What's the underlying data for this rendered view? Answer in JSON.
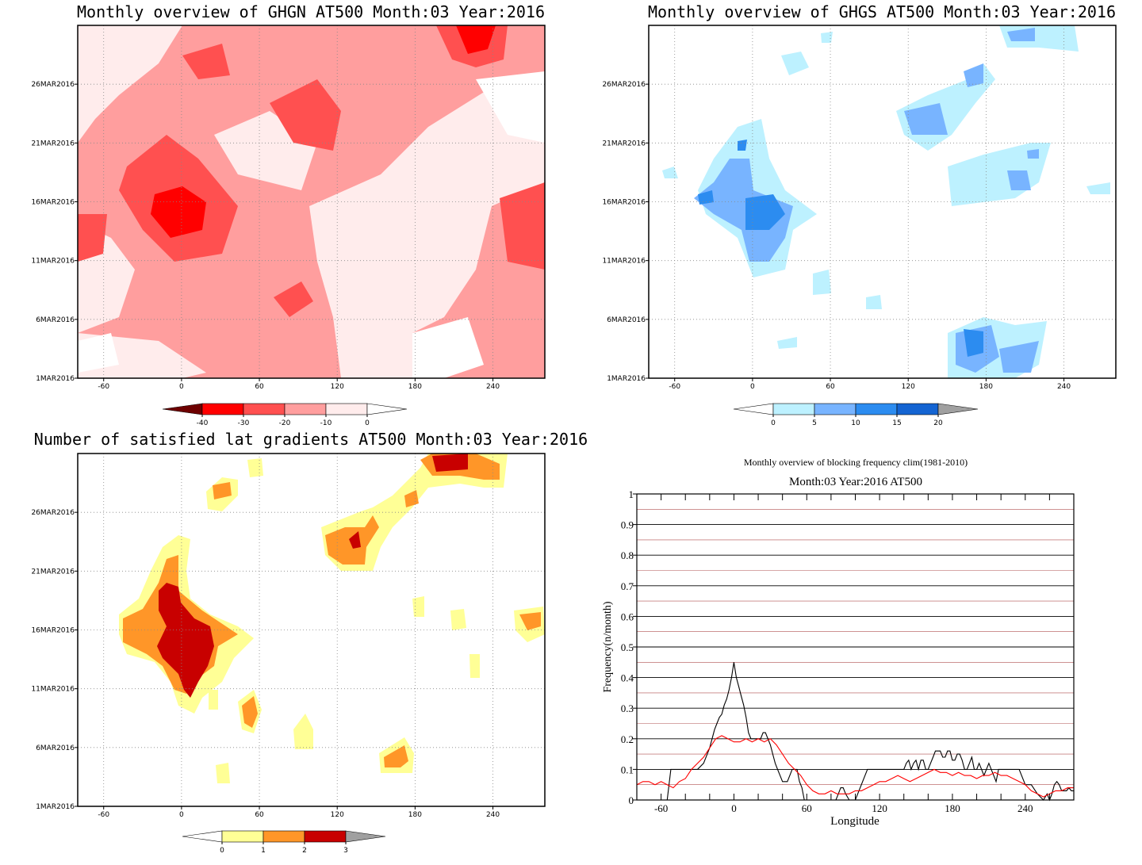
{
  "chart_data": [
    {
      "type": "heatmap",
      "title": "Monthly overview of GHGN AT500 Month:03 Year:2016",
      "x_ticks": [
        "-60",
        "0",
        "60",
        "120",
        "180",
        "240"
      ],
      "y_ticks": [
        "1MAR2016",
        "6MAR2016",
        "11MAR2016",
        "16MAR2016",
        "21MAR2016",
        "26MAR2016"
      ],
      "xlim": [
        -80,
        280
      ],
      "ylim": [
        "1MAR2016",
        "31MAR2016"
      ],
      "grid": true,
      "colorbar": {
        "labels": [
          "-40",
          "-30",
          "-20",
          "-10",
          "0"
        ],
        "colors": [
          "#6e0000",
          "#ff0000",
          "#ff5050",
          "#ff9e9e",
          "#ffecec",
          "#ffffff"
        ]
      },
      "features": [
        {
          "lon": -5,
          "day": 15.5,
          "level": -20
        },
        {
          "lon": 85,
          "day": 24.2,
          "level": -20
        },
        {
          "lon": 225,
          "day": 30.6,
          "level": -30
        },
        {
          "lon": 262,
          "day": 14.5,
          "level": -20
        },
        {
          "lon": 85,
          "day": 8.5,
          "level": -20
        }
      ]
    },
    {
      "type": "heatmap",
      "title": "Monthly overview of GHGS AT500 Month:03 Year:2016",
      "x_ticks": [
        "-60",
        "0",
        "60",
        "120",
        "180",
        "240"
      ],
      "y_ticks": [
        "1MAR2016",
        "6MAR2016",
        "11MAR2016",
        "16MAR2016",
        "21MAR2016",
        "26MAR2016"
      ],
      "xlim": [
        -80,
        280
      ],
      "ylim": [
        "1MAR2016",
        "31MAR2016"
      ],
      "grid": true,
      "colorbar": {
        "labels": [
          "0",
          "5",
          "10",
          "15",
          "20"
        ],
        "colors": [
          "#ffffff",
          "#bdf1ff",
          "#78b4ff",
          "#2c8cf0",
          "#1464d2",
          "#a0a0a0"
        ]
      },
      "features": [
        {
          "lon": 5,
          "day": 14.5,
          "level": 15
        },
        {
          "lon": 170,
          "day": 3.5,
          "level": 15
        },
        {
          "lon": 140,
          "day": 22,
          "level": 10
        },
        {
          "lon": 200,
          "day": 26.5,
          "level": 10
        }
      ]
    },
    {
      "type": "heatmap",
      "title": "Number of satisfied lat gradients AT500 Month:03 Year:2016",
      "x_ticks": [
        "-60",
        "0",
        "60",
        "120",
        "180",
        "240"
      ],
      "y_ticks": [
        "1MAR2016",
        "6MAR2016",
        "11MAR2016",
        "16MAR2016",
        "21MAR2016",
        "26MAR2016"
      ],
      "xlim": [
        -80,
        280
      ],
      "ylim": [
        "1MAR2016",
        "31MAR2016"
      ],
      "grid": true,
      "colorbar": {
        "labels": [
          "0",
          "1",
          "2",
          "3"
        ],
        "colors": [
          "#ffffff",
          "#ffff96",
          "#ff9628",
          "#c80000",
          "#a0a0a0"
        ]
      },
      "features": [
        {
          "lon": 5,
          "day": 14,
          "level": 3
        },
        {
          "lon": 133,
          "day": 22.7,
          "level": 3
        },
        {
          "lon": 205,
          "day": 30.5,
          "level": 3
        },
        {
          "lon": 50,
          "day": 9.2,
          "level": 2
        },
        {
          "lon": 165,
          "day": 4.7,
          "level": 2
        }
      ]
    },
    {
      "type": "line",
      "title": "Monthly overview of blocking frequency clim(1981-2010)",
      "subtitle": "Month:03 Year:2016  AT500",
      "xlabel": "Longitude",
      "ylabel": "Frequency(n/month)",
      "x_ticks": [
        "-60",
        "0",
        "60",
        "120",
        "180",
        "240"
      ],
      "y_ticks": [
        "0",
        "0.1",
        "0.2",
        "0.3",
        "0.4",
        "0.5",
        "0.6",
        "0.7",
        "0.8",
        "0.9",
        "1"
      ],
      "xlim": [
        -80,
        280
      ],
      "ylim": [
        0,
        1
      ],
      "series": [
        {
          "color": "#000000",
          "x": [
            -80,
            -55,
            -52,
            -35,
            -30,
            -25,
            -22,
            -20,
            -18,
            -16,
            -14,
            -12,
            -10,
            -8,
            -6,
            -4,
            -2,
            0,
            2,
            4,
            6,
            8,
            10,
            12,
            14,
            16,
            18,
            20,
            22,
            24,
            26,
            28,
            30,
            32,
            34,
            36,
            38,
            40,
            42,
            44,
            46,
            48,
            50,
            52,
            54,
            56,
            58,
            60,
            70,
            80,
            84,
            86,
            88,
            90,
            92,
            95,
            100,
            110,
            120,
            130,
            140,
            142,
            144,
            146,
            148,
            150,
            152,
            154,
            156,
            158,
            160,
            162,
            164,
            166,
            168,
            170,
            172,
            174,
            176,
            178,
            180,
            182,
            184,
            186,
            188,
            190,
            192,
            194,
            196,
            198,
            200,
            202,
            204,
            206,
            208,
            210,
            212,
            214,
            216,
            218,
            220,
            225,
            230,
            235,
            240,
            245,
            250,
            255,
            258,
            260,
            262,
            264,
            266,
            268,
            270,
            272,
            274,
            276,
            278,
            280
          ],
          "y": [
            0,
            0,
            0.1,
            0.1,
            0.1,
            0.12,
            0.15,
            0.17,
            0.2,
            0.23,
            0.25,
            0.27,
            0.28,
            0.31,
            0.33,
            0.36,
            0.4,
            0.45,
            0.4,
            0.37,
            0.34,
            0.31,
            0.27,
            0.22,
            0.2,
            0.2,
            0.2,
            0.2,
            0.2,
            0.22,
            0.22,
            0.2,
            0.18,
            0.15,
            0.12,
            0.1,
            0.08,
            0.06,
            0.06,
            0.06,
            0.08,
            0.1,
            0.1,
            0.1,
            0.06,
            0.04,
            0,
            0,
            0,
            0,
            0,
            0.02,
            0.04,
            0.04,
            0.02,
            0,
            0,
            0.1,
            0.1,
            0.1,
            0.1,
            0.12,
            0.13,
            0.1,
            0.12,
            0.13,
            0.1,
            0.13,
            0.13,
            0.1,
            0.1,
            0.12,
            0.14,
            0.16,
            0.16,
            0.16,
            0.14,
            0.14,
            0.16,
            0.16,
            0.13,
            0.13,
            0.15,
            0.15,
            0.13,
            0.1,
            0.1,
            0.12,
            0.14,
            0.1,
            0.1,
            0.12,
            0.1,
            0.08,
            0.1,
            0.12,
            0.1,
            0.08,
            0.06,
            0.1,
            0.1,
            0.1,
            0.1,
            0.1,
            0.05,
            0.05,
            0.02,
            0,
            0.02,
            0,
            0.02,
            0.05,
            0.06,
            0.05,
            0.03,
            0.03,
            0.03,
            0.04,
            0.03,
            0.03
          ]
        },
        {
          "color": "#ff0000",
          "x": [
            -80,
            -75,
            -70,
            -65,
            -60,
            -55,
            -50,
            -45,
            -40,
            -35,
            -30,
            -25,
            -20,
            -15,
            -10,
            -5,
            0,
            5,
            10,
            15,
            20,
            25,
            30,
            35,
            40,
            45,
            50,
            55,
            60,
            65,
            70,
            75,
            80,
            85,
            90,
            95,
            100,
            105,
            110,
            115,
            120,
            125,
            130,
            135,
            140,
            145,
            150,
            155,
            160,
            165,
            170,
            175,
            180,
            185,
            190,
            195,
            200,
            205,
            210,
            215,
            220,
            225,
            230,
            235,
            240,
            245,
            250,
            255,
            260,
            265,
            270,
            275,
            280
          ],
          "y": [
            0.05,
            0.06,
            0.06,
            0.05,
            0.06,
            0.05,
            0.04,
            0.06,
            0.07,
            0.1,
            0.12,
            0.14,
            0.17,
            0.2,
            0.21,
            0.2,
            0.19,
            0.19,
            0.2,
            0.19,
            0.2,
            0.19,
            0.2,
            0.18,
            0.15,
            0.12,
            0.1,
            0.08,
            0.05,
            0.03,
            0.02,
            0.02,
            0.03,
            0.02,
            0.02,
            0.02,
            0.03,
            0.03,
            0.04,
            0.05,
            0.06,
            0.06,
            0.07,
            0.08,
            0.07,
            0.06,
            0.07,
            0.08,
            0.09,
            0.1,
            0.09,
            0.09,
            0.08,
            0.09,
            0.08,
            0.08,
            0.07,
            0.08,
            0.08,
            0.09,
            0.08,
            0.08,
            0.07,
            0.06,
            0.05,
            0.03,
            0.02,
            0.01,
            0.02,
            0.03,
            0.03,
            0.04,
            0.04
          ]
        }
      ]
    }
  ]
}
